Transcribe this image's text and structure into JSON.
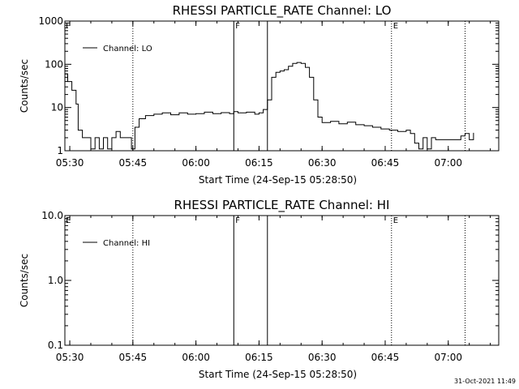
{
  "footer": {
    "timestamp": "31-Oct-2021 11:49"
  },
  "chart_data": [
    {
      "type": "line",
      "title": "RHESSI PARTICLE_RATE Channel: LO",
      "xlabel": "Start Time (24-Sep-15 05:28:50)",
      "ylabel": "Counts/sec",
      "yscale": "log",
      "xlim": [
        "05:28:50",
        "07:12:00"
      ],
      "ylim": [
        1,
        1000
      ],
      "x_ticks": [
        "05:30",
        "05:45",
        "06:00",
        "06:15",
        "06:30",
        "06:45",
        "07:00"
      ],
      "y_ticks": [
        "1",
        "10",
        "100",
        "1000"
      ],
      "legend": {
        "position": "top-left"
      },
      "markers": [
        {
          "time": "05:45:00",
          "style": "dotted",
          "label": ""
        },
        {
          "time": "06:09:00",
          "style": "solid",
          "label": "F"
        },
        {
          "time": "06:17:00",
          "style": "solid",
          "label": ""
        },
        {
          "time": "06:46:30",
          "style": "dotted",
          "label": "E"
        },
        {
          "time": "07:04:00",
          "style": "dotted",
          "label": ""
        }
      ],
      "corner_labels": [
        "F"
      ],
      "series": [
        {
          "name": "Channel: LO",
          "color": "#000000",
          "points": [
            [
              "05:28:50",
              60
            ],
            [
              "05:29:30",
              40
            ],
            [
              "05:30:30",
              25
            ],
            [
              "05:31:30",
              12
            ],
            [
              "05:32:00",
              3
            ],
            [
              "05:33:00",
              2
            ],
            [
              "05:34:00",
              2
            ],
            [
              "05:35:00",
              1.1
            ],
            [
              "05:36:00",
              2
            ],
            [
              "05:37:00",
              1.1
            ],
            [
              "05:38:00",
              2
            ],
            [
              "05:39:00",
              1.1
            ],
            [
              "05:40:00",
              2
            ],
            [
              "05:41:00",
              2.8
            ],
            [
              "05:42:00",
              2
            ],
            [
              "05:43:00",
              2
            ],
            [
              "05:44:00",
              2
            ],
            [
              "05:44:40",
              1.1
            ],
            [
              "05:45:30",
              3.5
            ],
            [
              "05:46:30",
              5.5
            ],
            [
              "05:48:00",
              6.5
            ],
            [
              "05:50:00",
              7
            ],
            [
              "05:52:00",
              7.5
            ],
            [
              "05:54:00",
              6.8
            ],
            [
              "05:56:00",
              7.5
            ],
            [
              "05:58:00",
              7
            ],
            [
              "06:00:00",
              7.2
            ],
            [
              "06:02:00",
              7.8
            ],
            [
              "06:04:00",
              7.2
            ],
            [
              "06:06:00",
              7.6
            ],
            [
              "06:08:00",
              7.2
            ],
            [
              "06:09:00",
              8
            ],
            [
              "06:10:00",
              7.5
            ],
            [
              "06:12:00",
              7.8
            ],
            [
              "06:14:00",
              7
            ],
            [
              "06:15:00",
              7.5
            ],
            [
              "06:16:00",
              9
            ],
            [
              "06:17:00",
              15
            ],
            [
              "06:18:00",
              50
            ],
            [
              "06:19:00",
              65
            ],
            [
              "06:20:00",
              70
            ],
            [
              "06:21:00",
              75
            ],
            [
              "06:22:00",
              90
            ],
            [
              "06:23:00",
              105
            ],
            [
              "06:24:00",
              110
            ],
            [
              "06:25:00",
              105
            ],
            [
              "06:26:00",
              85
            ],
            [
              "06:27:00",
              50
            ],
            [
              "06:28:00",
              15
            ],
            [
              "06:29:00",
              6
            ],
            [
              "06:30:00",
              4.5
            ],
            [
              "06:32:00",
              4.8
            ],
            [
              "06:34:00",
              4.2
            ],
            [
              "06:36:00",
              4.6
            ],
            [
              "06:38:00",
              4
            ],
            [
              "06:40:00",
              3.8
            ],
            [
              "06:42:00",
              3.5
            ],
            [
              "06:44:00",
              3.2
            ],
            [
              "06:46:00",
              3
            ],
            [
              "06:48:00",
              2.8
            ],
            [
              "06:50:00",
              3
            ],
            [
              "06:51:00",
              2.5
            ],
            [
              "06:52:00",
              1.5
            ],
            [
              "06:53:00",
              1.1
            ],
            [
              "06:54:00",
              2
            ],
            [
              "06:55:00",
              1.1
            ],
            [
              "06:56:00",
              2
            ],
            [
              "06:57:00",
              1.8
            ],
            [
              "06:58:00",
              1.8
            ],
            [
              "07:00:00",
              1.8
            ],
            [
              "07:02:00",
              1.8
            ],
            [
              "07:03:00",
              2.2
            ],
            [
              "07:04:00",
              2.5
            ],
            [
              "07:05:00",
              1.8
            ],
            [
              "07:06:00",
              2.6
            ]
          ]
        }
      ]
    },
    {
      "type": "line",
      "title": "RHESSI PARTICLE_RATE Channel: HI",
      "xlabel": "Start Time (24-Sep-15 05:28:50)",
      "ylabel": "Counts/sec",
      "yscale": "log",
      "xlim": [
        "05:28:50",
        "07:12:00"
      ],
      "ylim": [
        0.1,
        10
      ],
      "x_ticks": [
        "05:30",
        "05:45",
        "06:00",
        "06:15",
        "06:30",
        "06:45",
        "07:00"
      ],
      "y_ticks": [
        "0.1",
        "1.0",
        "10.0"
      ],
      "legend": {
        "position": "top-left"
      },
      "markers": [
        {
          "time": "05:45:00",
          "style": "dotted",
          "label": ""
        },
        {
          "time": "06:09:00",
          "style": "solid",
          "label": "F"
        },
        {
          "time": "06:17:00",
          "style": "solid",
          "label": ""
        },
        {
          "time": "06:46:30",
          "style": "dotted",
          "label": "E"
        },
        {
          "time": "07:04:00",
          "style": "dotted",
          "label": ""
        }
      ],
      "corner_labels": [
        "E"
      ],
      "series": [
        {
          "name": "Channel: HI",
          "color": "#000000",
          "points": []
        }
      ]
    }
  ]
}
